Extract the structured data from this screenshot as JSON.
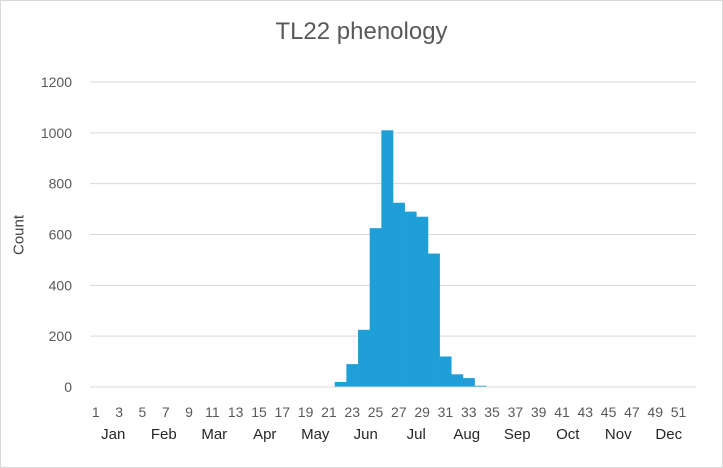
{
  "chart_data": {
    "type": "bar",
    "title": "TL22 phenology",
    "ylabel": "Count",
    "xlabel": "",
    "ylim": [
      0,
      1200
    ],
    "yticks": [
      0,
      200,
      400,
      600,
      800,
      1000,
      1200
    ],
    "x": [
      1,
      2,
      3,
      4,
      5,
      6,
      7,
      8,
      9,
      10,
      11,
      12,
      13,
      14,
      15,
      16,
      17,
      18,
      19,
      20,
      21,
      22,
      23,
      24,
      25,
      26,
      27,
      28,
      29,
      30,
      31,
      32,
      33,
      34,
      35,
      36,
      37,
      38,
      39,
      40,
      41,
      42,
      43,
      44,
      45,
      46,
      47,
      48,
      49,
      50,
      51,
      52
    ],
    "x_tick_labels": [
      "1",
      "3",
      "5",
      "7",
      "9",
      "11",
      "13",
      "15",
      "17",
      "19",
      "21",
      "23",
      "25",
      "27",
      "29",
      "31",
      "33",
      "35",
      "37",
      "39",
      "41",
      "43",
      "45",
      "47",
      "49",
      "51"
    ],
    "months": [
      "Jan",
      "Feb",
      "Mar",
      "Apr",
      "May",
      "Jun",
      "Jul",
      "Aug",
      "Sep",
      "Oct",
      "Nov",
      "Dec"
    ],
    "values": [
      0,
      0,
      0,
      0,
      0,
      0,
      0,
      0,
      0,
      0,
      0,
      0,
      0,
      0,
      0,
      0,
      0,
      0,
      0,
      0,
      0,
      20,
      90,
      225,
      625,
      1010,
      725,
      690,
      670,
      525,
      120,
      50,
      35,
      5,
      0,
      0,
      0,
      0,
      0,
      0,
      0,
      0,
      0,
      0,
      0,
      0,
      0,
      0,
      0,
      0,
      0,
      0
    ],
    "grid": true,
    "legend": "none",
    "bar_color": "#1f9fd8",
    "grid_color": "#d9d9d9"
  }
}
